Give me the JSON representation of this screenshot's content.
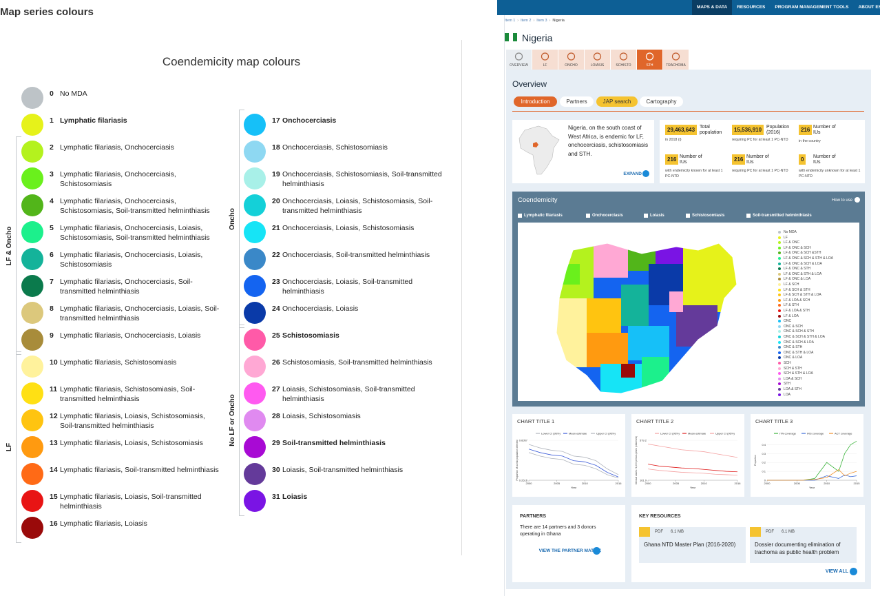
{
  "header": {
    "title": "Map series colours"
  },
  "legend": {
    "title": "Coendemicity map colours",
    "items": [
      {
        "number": 0,
        "label": "No MDA",
        "color": "#bdc3c7",
        "bold": false
      },
      {
        "number": 1,
        "label": "Lymphatic filariasis",
        "color": "#e6f21a",
        "bold": true
      },
      {
        "number": 2,
        "label": "Lymphatic filariasis, Onchocerciasis",
        "color": "#b4f21e",
        "bold": false
      },
      {
        "number": 3,
        "label": "Lymphatic filariasis, Onchocerciasis, Schistosomiasis",
        "color": "#6af01c",
        "bold": false
      },
      {
        "number": 4,
        "label": "Lymphatic filariasis, Onchocerciasis, Schistosomiasis, Soil-transmitted helminthiasis",
        "color": "#52b51a",
        "bold": false
      },
      {
        "number": 5,
        "label": "Lymphatic filariasis, Onchocerciasis, Loiasis, Schistosomiasis, Soil-transmitted helminthiasis",
        "color": "#1cf08c",
        "bold": false
      },
      {
        "number": 6,
        "label": "Lymphatic filariasis, Onchocerciasis, Loiasis, Schistosomiasis",
        "color": "#14b39a",
        "bold": false
      },
      {
        "number": 7,
        "label": "Lymphatic filariasis, Onchocerciasis, Soil-transmitted helminthiasis",
        "color": "#0b7a4c",
        "bold": false
      },
      {
        "number": 8,
        "label": "Lymphatic filariasis, Onchocerciasis, Loiasis, Soil-transmitted helminthiasis",
        "color": "#dcc87c",
        "bold": false
      },
      {
        "number": 9,
        "label": "Lymphatic filariasis, Onchocerciasis, Loiasis",
        "color": "#a88c3a",
        "bold": false
      },
      {
        "number": 10,
        "label": "Lymphatic filariasis, Schistosomiasis",
        "color": "#fff29c",
        "bold": false
      },
      {
        "number": 11,
        "label": "Lymphatic filariasis, Schistosomiasis, Soil-transmitted helminthiasis",
        "color": "#ffe014",
        "bold": false
      },
      {
        "number": 12,
        "label": "Lymphatic filariasis, Loiasis, Schistosomiasis, Soil-transmitted helminthiasis",
        "color": "#ffc410",
        "bold": false
      },
      {
        "number": 13,
        "label": "Lymphatic filariasis, Loiasis, Schistosomiasis",
        "color": "#ff9a10",
        "bold": false
      },
      {
        "number": 14,
        "label": "Lymphatic filariasis, Soil-transmitted helminthiasis",
        "color": "#ff6a16",
        "bold": false
      },
      {
        "number": 15,
        "label": "Lymphatic filariasis, Loiasis, Soil-transmitted helminthiasis",
        "color": "#e81414",
        "bold": false
      },
      {
        "number": 16,
        "label": "Lymphatic filariasis, Loiasis",
        "color": "#9a0a0a",
        "bold": false
      },
      {
        "number": 17,
        "label": "Onchocerciasis",
        "color": "#16c0f8",
        "bold": true
      },
      {
        "number": 18,
        "label": "Onchocerciasis, Schistosomiasis",
        "color": "#8ed8f2",
        "bold": false
      },
      {
        "number": 19,
        "label": "Onchocerciasis, Schistosomiasis, Soil-transmitted helminthiasis",
        "color": "#a8f0e8",
        "bold": false
      },
      {
        "number": 20,
        "label": "Onchocerciasis, Loiasis, Schistosomiasis, Soil-transmitted helminthiasis",
        "color": "#14d0d8",
        "bold": false
      },
      {
        "number": 21,
        "label": "Onchocerciasis, Loiasis, Schistosomiasis",
        "color": "#16e4f6",
        "bold": false
      },
      {
        "number": 22,
        "label": "Onchocerciasis, Soil-transmitted helminthiasis",
        "color": "#3a88c8",
        "bold": false
      },
      {
        "number": 23,
        "label": "Onchocerciasis, Loiasis, Soil-transmitted helminthiasis",
        "color": "#1464f0",
        "bold": false
      },
      {
        "number": 24,
        "label": "Onchocerciasis, Loiasis",
        "color": "#0a3aa8",
        "bold": false
      },
      {
        "number": 25,
        "label": "Schistosomiasis",
        "color": "#ff5aa8",
        "bold": true
      },
      {
        "number": 26,
        "label": "Schistosomiasis, Soil-transmitted helminthiasis",
        "color": "#ffa8d4",
        "bold": false
      },
      {
        "number": 27,
        "label": "Loiasis, Schistosomiasis, Soil-transmitted helminthiasis",
        "color": "#ff5af0",
        "bold": false
      },
      {
        "number": 28,
        "label": "Loiasis, Schistosomiasis",
        "color": "#e08af0",
        "bold": false
      },
      {
        "number": 29,
        "label": "Soil-transmitted helminthiasis",
        "color": "#a80ad4",
        "bold": true
      },
      {
        "number": 30,
        "label": "Loiasis, Soil-transmitted helminthiasis",
        "color": "#643a9a",
        "bold": false
      },
      {
        "number": 31,
        "label": "Loiasis",
        "color": "#7a14e4",
        "bold": true
      }
    ],
    "groups": [
      {
        "label": "LF & Oncho",
        "first": 2,
        "last": 9
      },
      {
        "label": "LF",
        "first": 10,
        "last": 16
      },
      {
        "label": "Oncho",
        "first": 17,
        "last": 24
      },
      {
        "label": "No LF or Oncho",
        "first": 25,
        "last": 31
      }
    ]
  },
  "ui": {
    "nav": [
      "MAPS & DATA",
      "RESOURCES",
      "PROGRAM MANAGEMENT TOOLS",
      "ABOUT ESPEN"
    ],
    "nav_active": 0,
    "breadcrumb": [
      "Item 1",
      "Item 2",
      "Item 3",
      "Nigeria"
    ],
    "country": "Nigeria",
    "tabs": [
      "OVERVIEW",
      "LF",
      "ONCHO",
      "LOIASIS",
      "SCHISTO",
      "STH",
      "TRACHOMA"
    ],
    "tab_active": 5,
    "section_title": "Overview",
    "subtabs": [
      "Introduction",
      "Partners",
      "JAP search",
      "Cartography"
    ],
    "subtab_active": 0,
    "subtab_hover": 2,
    "intro": {
      "text": "Nigeria, on the south coast of West Africa, is endemic for LF, onchocerciasis, schistosomiasis and STH.",
      "button": "EXPAND"
    },
    "stats": [
      {
        "value": "29,463,643",
        "label": "Total population",
        "note": "in 2018 (i)"
      },
      {
        "value": "15,536,910",
        "label": "Population (2016)",
        "note": "requiring PC for at least 1 PC-NTD"
      },
      {
        "value": "216",
        "label": "Number of IUs",
        "note": "in the country"
      },
      {
        "value": "216",
        "label": "Number of IUs",
        "note": "with endemicity known for at least 1 PC-NTD"
      },
      {
        "value": "216",
        "label": "Number of IUs",
        "note": "requiring PC for at least 1 PC-NTD"
      },
      {
        "value": "0",
        "label": "Number of IUs",
        "note": "with endemicity unknown for at least 1 PC-NTD"
      }
    ],
    "coendemicity": {
      "title": "Coendemicity",
      "help": "How to use",
      "filters": [
        "Lymphatic filariasis",
        "Onchocerciasis",
        "Loiasis",
        "Schistosomiasis",
        "Soil-transmitted helminthiasis"
      ],
      "legend": [
        "No MDA",
        "LF",
        "LF & ONC",
        "LF & ONC & SCH",
        "LF & ONC & SCH &STH",
        "LF & ONC & SCH & STH & LOA",
        "LF & ONC & SCH & LOA",
        "LF & ONC & STH",
        "LF & ONC & STH & LOA",
        "LF & ONC & LOA",
        "LF & SCH",
        "LF & SCH & STH",
        "LF & SCH & STH & LOA",
        "LF & LOA & SCH",
        "LF & STH",
        "LF & LOA & STH",
        "LF & LOA",
        "ONC",
        "ONC & SCH",
        "ONC & SCH & STH",
        "ONC & SCH & STH & LOA",
        "ONC & SCH & LOA",
        "ONC & STH",
        "ONC & STH & LOA",
        "ONC & LOA",
        "SCH",
        "SCH & STH",
        "SCH & STH & LOA",
        "LOA & SCH",
        "STH",
        "LOA & STH",
        "LOA"
      ]
    },
    "charts": [
      {
        "type": "line",
        "title": "CHART TITLE 1",
        "y_label": "Proportion of at-risk population infected",
        "x_label": "Year",
        "x": [
          2000,
          2002,
          2004,
          2006,
          2008,
          2010,
          2012,
          2014,
          2016
        ],
        "xlim": [
          2000,
          2016
        ],
        "xticks": [
          2000,
          2005,
          2010,
          2016
        ],
        "ylim": [
          0.2616,
          0.6057
        ],
        "yticks": [
          0.2616,
          0.6057
        ],
        "series": [
          {
            "name": "Lower CI (95%)",
            "color": "#b0b4bc",
            "values": [
              0.5,
              0.47,
              0.45,
              0.44,
              0.4,
              0.39,
              0.36,
              0.31,
              0.28
            ]
          },
          {
            "name": "Mean estimate",
            "color": "#3a5ad8",
            "values": [
              0.53,
              0.5,
              0.48,
              0.47,
              0.43,
              0.42,
              0.39,
              0.33,
              0.29
            ]
          },
          {
            "name": "Upper CI (95%)",
            "color": "#b0b4bc",
            "values": [
              0.57,
              0.54,
              0.52,
              0.51,
              0.47,
              0.46,
              0.43,
              0.36,
              0.31
            ]
          }
        ]
      },
      {
        "type": "line",
        "title": "CHART TITLE 2",
        "y_label": "Clinical cases / 1,000 person-years (observed)",
        "x_label": "Year",
        "x": [
          2000,
          2002,
          2004,
          2006,
          2008,
          2010,
          2012,
          2014,
          2016
        ],
        "xlim": [
          2000,
          2016
        ],
        "xticks": [
          2000,
          2005,
          2010,
          2016
        ],
        "ylim": [
          161.9,
          579.2
        ],
        "yticks": [
          161.9,
          579.2
        ],
        "series": [
          {
            "name": "Lower CI (95%)",
            "color": "#f4a0a0",
            "values": [
              280,
              265,
              255,
              245,
              240,
              235,
              225,
              220,
              215
            ]
          },
          {
            "name": "Mean estimate",
            "color": "#e01e1e",
            "values": [
              330,
              310,
              300,
              290,
              285,
              275,
              265,
              255,
              250
            ]
          },
          {
            "name": "Upper CI (95%)",
            "color": "#f4a0a0",
            "values": [
              540,
              520,
              500,
              480,
              470,
              460,
              440,
              420,
              400
            ]
          }
        ]
      },
      {
        "type": "line",
        "title": "CHART TITLE 3",
        "y_label": "Proportion",
        "x_label": "Year",
        "x": [
          2000,
          2003,
          2006,
          2008,
          2010,
          2012,
          2013,
          2014,
          2015
        ],
        "xlim": [
          2000,
          2015
        ],
        "xticks": [
          2000,
          2005,
          2010,
          2015
        ],
        "ylim": [
          0,
          0.45
        ],
        "yticks": [
          0,
          0.1,
          0.2,
          0.3,
          0.4
        ],
        "series": [
          {
            "name": "ITN coverage",
            "color": "#3cb43c",
            "values": [
              0,
              0,
              0,
              0.02,
              0.2,
              0.1,
              0.3,
              0.4,
              0.44
            ]
          },
          {
            "name": "IRS coverage",
            "color": "#3a6ad8",
            "values": [
              0,
              0,
              0,
              0,
              0.05,
              0.02,
              0.06,
              0.04,
              0.05
            ]
          },
          {
            "name": "ACT coverage",
            "color": "#f0902a",
            "values": [
              0,
              0,
              0,
              0.01,
              0.03,
              0.12,
              0.05,
              0.08,
              0.1
            ]
          }
        ]
      }
    ],
    "partners": {
      "title": "PARTNERS",
      "text": "There are 14 partners and 3 donors operating in Ghana",
      "link": "VIEW THE PARTNER MATRIX"
    },
    "resources": {
      "title": "KEY RESOURCES",
      "items": [
        {
          "format": "PDF",
          "size": "6.1 MB",
          "title": "Ghana NTD Master Plan (2016-2020)"
        },
        {
          "format": "PDF",
          "size": "6.1 MB",
          "title": "Dossier documenting elimination of trachoma as public health problem"
        }
      ],
      "link": "VIEW ALL"
    }
  }
}
